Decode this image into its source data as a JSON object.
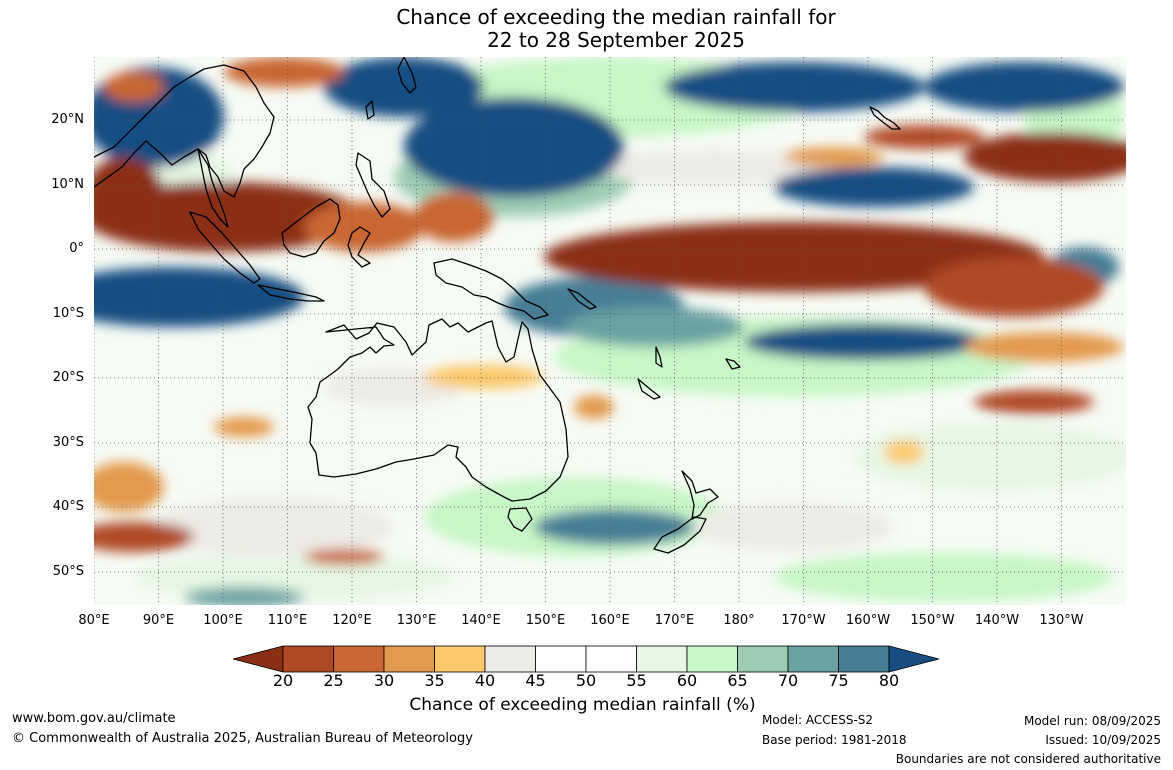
{
  "title": {
    "line1": "Chance of exceeding the median rainfall for",
    "line2": "22 to 28 September 2025"
  },
  "map": {
    "lat_labels": [
      "20°N",
      "10°N",
      "0°",
      "10°S",
      "20°S",
      "30°S",
      "40°S",
      "50°S"
    ],
    "lon_labels": [
      "80°E",
      "90°E",
      "100°E",
      "110°E",
      "120°E",
      "130°E",
      "140°E",
      "150°E",
      "160°E",
      "170°E",
      "180°",
      "170°W",
      "160°W",
      "150°W",
      "140°W",
      "130°W"
    ],
    "lat_range": [
      -55,
      30
    ],
    "lon_range": [
      80,
      240
    ],
    "grid": true
  },
  "colorbar": {
    "ticks": [
      "20",
      "25",
      "30",
      "35",
      "40",
      "45",
      "50",
      "55",
      "60",
      "65",
      "70",
      "75",
      "80"
    ],
    "colors": [
      "#8b2e16",
      "#b04a25",
      "#c96633",
      "#e39a4e",
      "#fdc86a",
      "#edebe6",
      "#ffffff",
      "#ffffff",
      "#e6f7e4",
      "#c8f7c8",
      "#9ccdb4",
      "#6ba2a2",
      "#467e96",
      "#194d82"
    ],
    "title": "Chance of exceeding median rainfall (%)"
  },
  "footer": {
    "website": "www.bom.gov.au/climate",
    "copyright": "© Commonwealth of Australia 2025, Australian Bureau of Meteorology",
    "model": "Model: ACCESS-S2",
    "base_period": "Base period: 1981-2018",
    "model_run": "Model run: 08/09/2025",
    "issued": "Issued: 10/09/2025",
    "disclaimer": "Boundaries are not considered authoritative"
  }
}
